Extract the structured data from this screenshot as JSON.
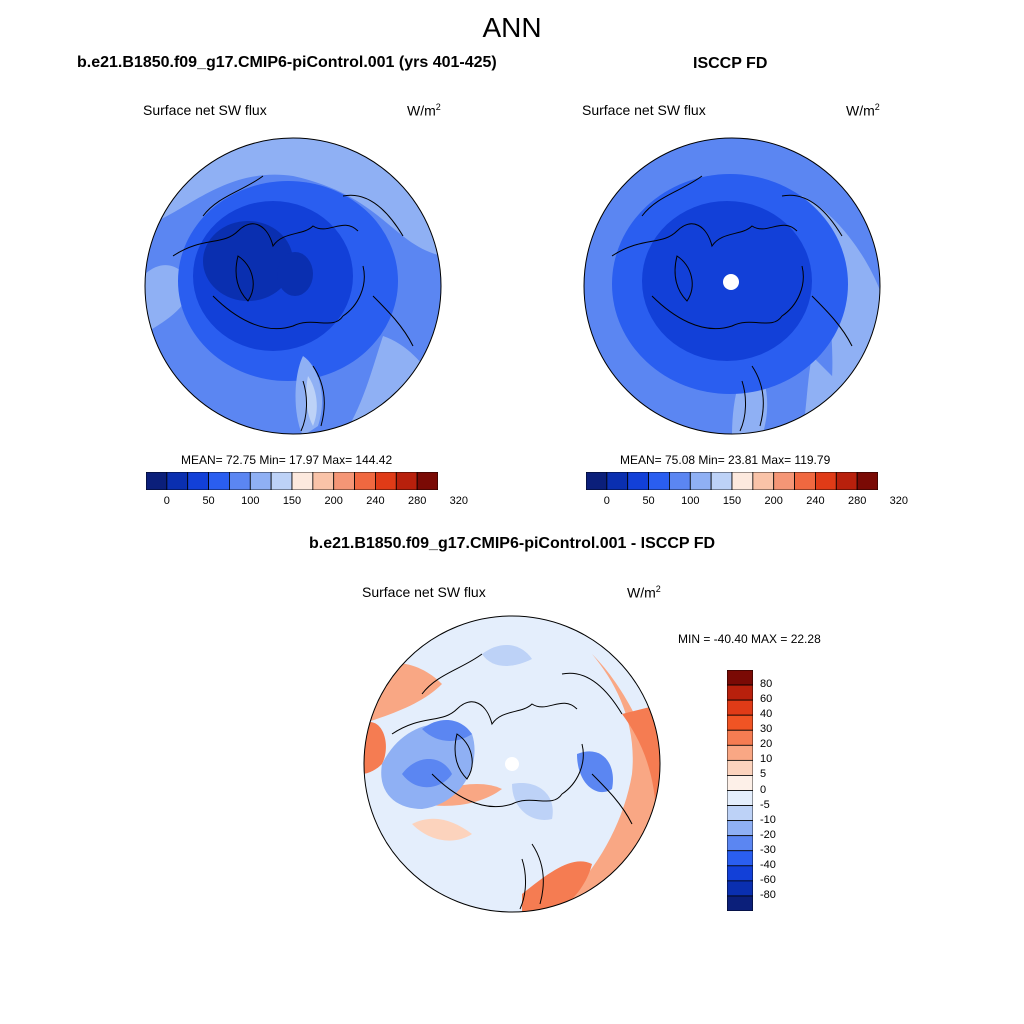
{
  "figure": {
    "title": "ANN"
  },
  "panels": [
    {
      "case": "b.e21.B1850.f09_g17.CMIP6-piControl.001 (yrs 401-425)",
      "variable": "Surface net SW flux",
      "units": "W/m",
      "units_sup": "2",
      "stats": "MEAN=  72.75  Min=  17.97  Max= 144.42",
      "mean": 72.75,
      "min": 17.97,
      "max": 144.42,
      "colorbar_ticks": [
        "0",
        "50",
        "100",
        "150",
        "200",
        "240",
        "280",
        "320"
      ],
      "colorbar_colors": [
        "#0b1f7a",
        "#0a2fb0",
        "#1240d8",
        "#2a5ef0",
        "#5b86f2",
        "#8fb0f4",
        "#bdd2f7",
        "#fce9de",
        "#f9c3a8",
        "#f59676",
        "#f06840",
        "#e03b17",
        "#b8200c",
        "#7a0a05"
      ]
    },
    {
      "case": "ISCCP FD",
      "variable": "Surface net SW flux",
      "units": "W/m",
      "units_sup": "2",
      "stats": "MEAN=  75.08  Min=  23.81  Max= 119.79",
      "mean": 75.08,
      "min": 23.81,
      "max": 119.79,
      "colorbar_ticks": [
        "0",
        "50",
        "100",
        "150",
        "200",
        "240",
        "280",
        "320"
      ],
      "colorbar_colors": [
        "#0b1f7a",
        "#0a2fb0",
        "#1240d8",
        "#2a5ef0",
        "#5b86f2",
        "#8fb0f4",
        "#bdd2f7",
        "#fce9de",
        "#f9c3a8",
        "#f59676",
        "#f06840",
        "#e03b17",
        "#b8200c",
        "#7a0a05"
      ]
    },
    {
      "case": "b.e21.B1850.f09_g17.CMIP6-piControl.001 - ISCCP FD",
      "variable": "Surface net SW flux",
      "units": "W/m",
      "units_sup": "2",
      "stats": "MIN = -40.40 MAX =  22.28",
      "min": -40.4,
      "max": 22.28,
      "colorbar_ticks": [
        "80",
        "60",
        "40",
        "30",
        "20",
        "10",
        "5",
        "0",
        "-5",
        "-10",
        "-20",
        "-30",
        "-40",
        "-60",
        "-80"
      ],
      "colorbar_colors": [
        "#7a0a05",
        "#b8200c",
        "#e03b17",
        "#f05424",
        "#f57c52",
        "#f9a784",
        "#fcd3bd",
        "#fdf0e8",
        "#e4eefc",
        "#bdd2f7",
        "#8fb0f4",
        "#5b86f2",
        "#2a5ef0",
        "#1240d8",
        "#0a2fb0",
        "#0b1f7a"
      ]
    }
  ]
}
